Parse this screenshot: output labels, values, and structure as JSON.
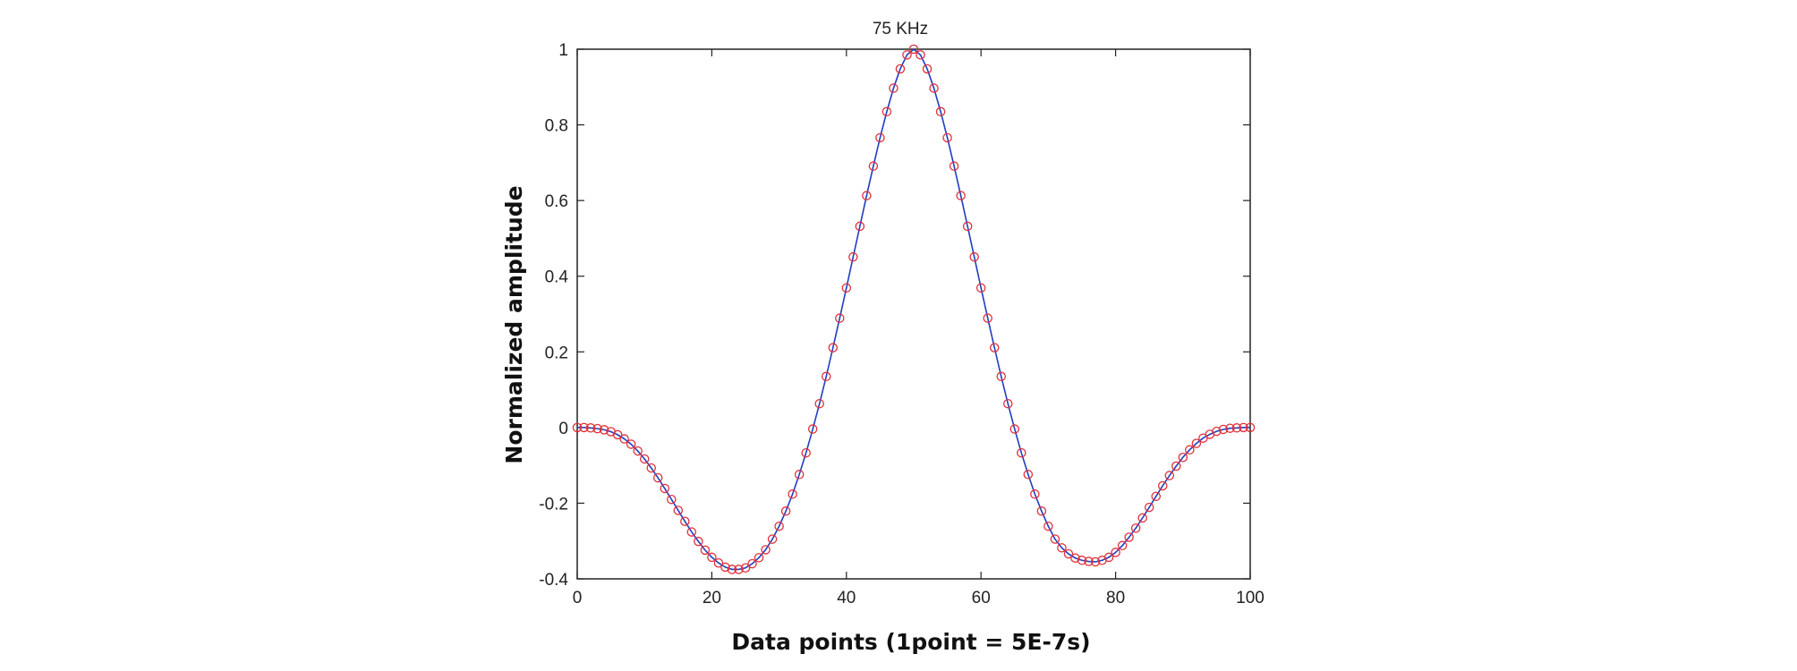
{
  "chart_data": {
    "type": "line",
    "title": "75 KHz",
    "xlabel": "Data points (1point = 5E-7s)",
    "ylabel": "Normalized amplitude",
    "xlim": [
      0,
      100
    ],
    "ylim": [
      -0.4,
      1
    ],
    "xticks": [
      0,
      20,
      40,
      60,
      80,
      100
    ],
    "yticks": [
      -0.4,
      -0.2,
      0,
      0.2,
      0.4,
      0.6,
      0.8,
      1
    ],
    "xtick_labels": [
      "0",
      "20",
      "40",
      "60",
      "80",
      "100"
    ],
    "ytick_labels": [
      "-0.4",
      "-0.2",
      "0",
      "0.2",
      "0.4",
      "0.6",
      "0.8",
      "1"
    ],
    "grid": false,
    "line_color": "#1f3fbf",
    "marker_color": "#e0303a",
    "series": [
      {
        "style": "blue line with red circle markers",
        "x": [
          0,
          1,
          2,
          3,
          4,
          5,
          6,
          7,
          8,
          9,
          10,
          11,
          12,
          13,
          14,
          15,
          16,
          17,
          18,
          19,
          20,
          21,
          22,
          23,
          24,
          25,
          26,
          27,
          28,
          29,
          30,
          31,
          32,
          33,
          34,
          35,
          36,
          37,
          38,
          39,
          40,
          41,
          42,
          43,
          44,
          45,
          46,
          47,
          48,
          49,
          50,
          51,
          52,
          53,
          54,
          55,
          56,
          57,
          58,
          59,
          60,
          61,
          62,
          63,
          64,
          65,
          66,
          67,
          68,
          69,
          70,
          71,
          72,
          73,
          74,
          75,
          76,
          77,
          78,
          79,
          80,
          81,
          82,
          83,
          84,
          85,
          86,
          87,
          88,
          89,
          90,
          91,
          92,
          93,
          94,
          95,
          96,
          97,
          98,
          99,
          100
        ],
        "y": [
          0,
          0,
          -0.001,
          -0.003,
          -0.006,
          -0.011,
          -0.019,
          -0.03,
          -0.044,
          -0.062,
          -0.083,
          -0.107,
          -0.133,
          -0.161,
          -0.19,
          -0.219,
          -0.248,
          -0.276,
          -0.301,
          -0.324,
          -0.343,
          -0.358,
          -0.369,
          -0.375,
          -0.375,
          -0.371,
          -0.36,
          -0.344,
          -0.323,
          -0.295,
          -0.261,
          -0.221,
          -0.176,
          -0.124,
          -0.067,
          -0.004,
          0.063,
          0.135,
          0.211,
          0.289,
          0.369,
          0.451,
          0.532,
          0.613,
          0.691,
          0.766,
          0.835,
          0.897,
          0.948,
          0.985,
          1.0,
          0.985,
          0.948,
          0.897,
          0.835,
          0.766,
          0.691,
          0.613,
          0.532,
          0.451,
          0.369,
          0.289,
          0.211,
          0.135,
          0.063,
          -0.004,
          -0.067,
          -0.124,
          -0.176,
          -0.221,
          -0.261,
          -0.295,
          -0.318,
          -0.334,
          -0.345,
          -0.351,
          -0.354,
          -0.355,
          -0.351,
          -0.343,
          -0.33,
          -0.312,
          -0.29,
          -0.266,
          -0.239,
          -0.211,
          -0.182,
          -0.154,
          -0.127,
          -0.102,
          -0.079,
          -0.059,
          -0.042,
          -0.028,
          -0.018,
          -0.01,
          -0.005,
          -0.002,
          -0.001,
          0,
          0
        ]
      }
    ]
  }
}
